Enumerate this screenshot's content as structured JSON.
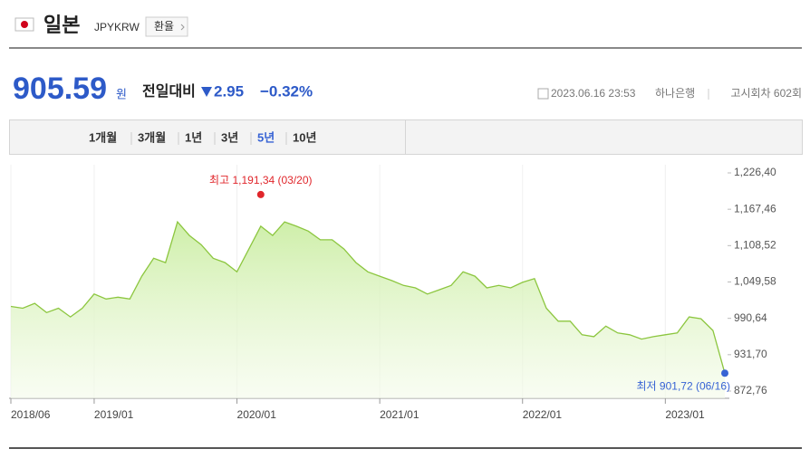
{
  "header": {
    "country": "일본",
    "code": "JPYKRW",
    "button": "환율"
  },
  "quote": {
    "price": "905.59",
    "unit": "원",
    "change_label": "전일대비",
    "change": "2.95",
    "change_pct": "−0.32%",
    "datetime": "2023.06.16 23:53",
    "bank": "하나은행",
    "round": "고시회차 602회"
  },
  "tabs": [
    "1개월",
    "3개월",
    "1년",
    "3년",
    "5년",
    "10년"
  ],
  "selected_tab": 4,
  "chart_data": {
    "type": "line",
    "x": [
      "2018/06",
      "2018/07",
      "2018/08",
      "2018/09",
      "2018/10",
      "2018/11",
      "2018/12",
      "2019/01",
      "2019/02",
      "2019/03",
      "2019/04",
      "2019/05",
      "2019/06",
      "2019/07",
      "2019/08",
      "2019/09",
      "2019/10",
      "2019/11",
      "2019/12",
      "2020/01",
      "2020/02",
      "2020/03",
      "2020/04",
      "2020/05",
      "2020/06",
      "2020/07",
      "2020/08",
      "2020/09",
      "2020/10",
      "2020/11",
      "2020/12",
      "2021/01",
      "2021/02",
      "2021/03",
      "2021/04",
      "2021/05",
      "2021/06",
      "2021/07",
      "2021/08",
      "2021/09",
      "2021/10",
      "2021/11",
      "2021/12",
      "2022/01",
      "2022/02",
      "2022/03",
      "2022/04",
      "2022/05",
      "2022/06",
      "2022/07",
      "2022/08",
      "2022/09",
      "2022/10",
      "2022/11",
      "2022/12",
      "2023/01",
      "2023/02",
      "2023/03",
      "2023/04",
      "2023/05",
      "2023/06"
    ],
    "series": [
      {
        "name": "JPYKRW",
        "color": "#8cc63f",
        "values": [
          1010,
          1007,
          1015,
          1000,
          1007,
          993,
          1007,
          1030,
          1022,
          1025,
          1022,
          1059,
          1088,
          1081,
          1147,
          1125,
          1110,
          1088,
          1081,
          1066,
          1103,
          1140,
          1125,
          1147,
          1140,
          1132,
          1118,
          1118,
          1103,
          1081,
          1066,
          1059,
          1052,
          1044,
          1040,
          1030,
          1037,
          1044,
          1066,
          1059,
          1040,
          1044,
          1040,
          1049,
          1055,
          1007,
          986,
          986,
          964,
          961,
          978,
          967,
          964,
          957,
          961,
          964,
          967,
          993,
          990,
          971,
          901.72
        ]
      }
    ],
    "xlim": [
      "2018/06",
      "2023/06"
    ],
    "xticks": [
      "2018/06",
      "2019/01",
      "2020/01",
      "2021/01",
      "2022/01",
      "2023/01"
    ],
    "ylim": [
      872.76,
      1226.4
    ],
    "yticks": [
      {
        "value": 872.76,
        "label": "872,76"
      },
      {
        "value": 931.7,
        "label": "931,70"
      },
      {
        "value": 990.64,
        "label": "990,64"
      },
      {
        "value": 1049.58,
        "label": "1,049,58"
      },
      {
        "value": 1108.52,
        "label": "1,108,52"
      },
      {
        "value": 1167.46,
        "label": "1,167,46"
      },
      {
        "value": 1226.4,
        "label": "1,226,40"
      }
    ],
    "annotations": [
      {
        "text": "최고 1,191,34 (03/20)",
        "x": "2020/03",
        "value": 1191.34,
        "color": "#e0262b"
      },
      {
        "text": "최저 901,72 (06/16)",
        "x": "2023/06",
        "value": 901.72,
        "color": "#3763d4"
      }
    ]
  }
}
